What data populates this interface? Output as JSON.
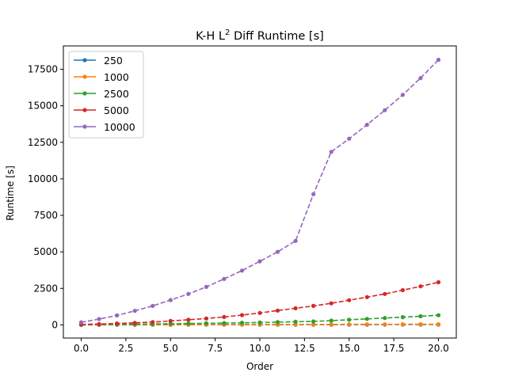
{
  "chart_data": {
    "type": "line",
    "title_main": "K-H L",
    "title_sup": "2",
    "title_rest": " Diff Runtime [s]",
    "xlabel": "Order",
    "ylabel": "Runtime [s]",
    "xlim": [
      -1.0,
      21.0
    ],
    "ylim": [
      -900,
      19100
    ],
    "xticks": [
      0.0,
      2.5,
      5.0,
      7.5,
      10.0,
      12.5,
      15.0,
      17.5,
      20.0
    ],
    "xtick_labels": [
      "0.0",
      "2.5",
      "5.0",
      "7.5",
      "10.0",
      "12.5",
      "15.0",
      "17.5",
      "20.0"
    ],
    "yticks": [
      0,
      2500,
      5000,
      7500,
      10000,
      12500,
      15000,
      17500
    ],
    "ytick_labels": [
      "0",
      "2500",
      "5000",
      "7500",
      "10000",
      "12500",
      "15000",
      "17500"
    ],
    "grid": false,
    "legend_position": "top-left",
    "x": [
      0,
      1,
      2,
      3,
      4,
      5,
      6,
      7,
      8,
      9,
      10,
      11,
      12,
      13,
      14,
      15,
      16,
      17,
      18,
      19,
      20
    ],
    "series": [
      {
        "name": "250",
        "color": "#1f77b4",
        "values": [
          2,
          3,
          4,
          5,
          6,
          7,
          8,
          9,
          10,
          11,
          12,
          13,
          14,
          15,
          16,
          17,
          18,
          19,
          20,
          21,
          22
        ]
      },
      {
        "name": "1000",
        "color": "#ff7f0e",
        "values": [
          5,
          7,
          9,
          11,
          13,
          15,
          17,
          19,
          21,
          23,
          25,
          27,
          29,
          31,
          33,
          35,
          37,
          39,
          41,
          43,
          45
        ]
      },
      {
        "name": "2500",
        "color": "#2ca02c",
        "values": [
          15,
          25,
          40,
          50,
          65,
          80,
          95,
          110,
          125,
          145,
          165,
          190,
          215,
          240,
          290,
          350,
          410,
          470,
          530,
          590,
          660
        ]
      },
      {
        "name": "5000",
        "color": "#d62728",
        "values": [
          30,
          60,
          95,
          140,
          195,
          270,
          350,
          440,
          540,
          670,
          820,
          980,
          1140,
          1300,
          1480,
          1690,
          1900,
          2120,
          2380,
          2640,
          2920
        ]
      },
      {
        "name": "10000",
        "color": "#9467bd",
        "values": [
          180,
          400,
          650,
          960,
          1300,
          1700,
          2120,
          2600,
          3150,
          3720,
          4350,
          5000,
          5750,
          8950,
          11850,
          12750,
          13700,
          14700,
          15750,
          16900,
          18150
        ]
      }
    ]
  }
}
